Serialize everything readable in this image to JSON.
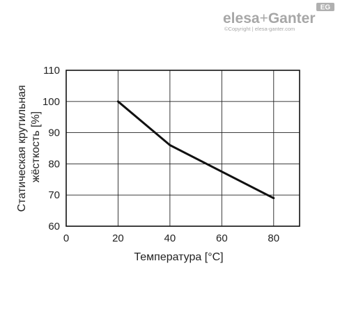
{
  "brand": {
    "logo_left": "elesa",
    "logo_plus": "+",
    "logo_right": "Ganter",
    "badge": "EG",
    "copyright": "©Copyright | elesa-ganter.com"
  },
  "chart_data": {
    "type": "line",
    "title": "",
    "xlabel": "Температура [°C]",
    "ylabel_lines": [
      "Статическая крутильная",
      "жёсткость [%]"
    ],
    "xlim": [
      0,
      90
    ],
    "ylim": [
      60,
      110
    ],
    "x_ticks": [
      0,
      20,
      40,
      60,
      80
    ],
    "y_ticks": [
      60,
      70,
      80,
      90,
      100,
      110
    ],
    "grid": true,
    "colors": {
      "line": "#111111",
      "grid": "#222222"
    },
    "series": [
      {
        "x": [
          20,
          40,
          80
        ],
        "y": [
          100,
          86,
          69
        ]
      }
    ]
  }
}
